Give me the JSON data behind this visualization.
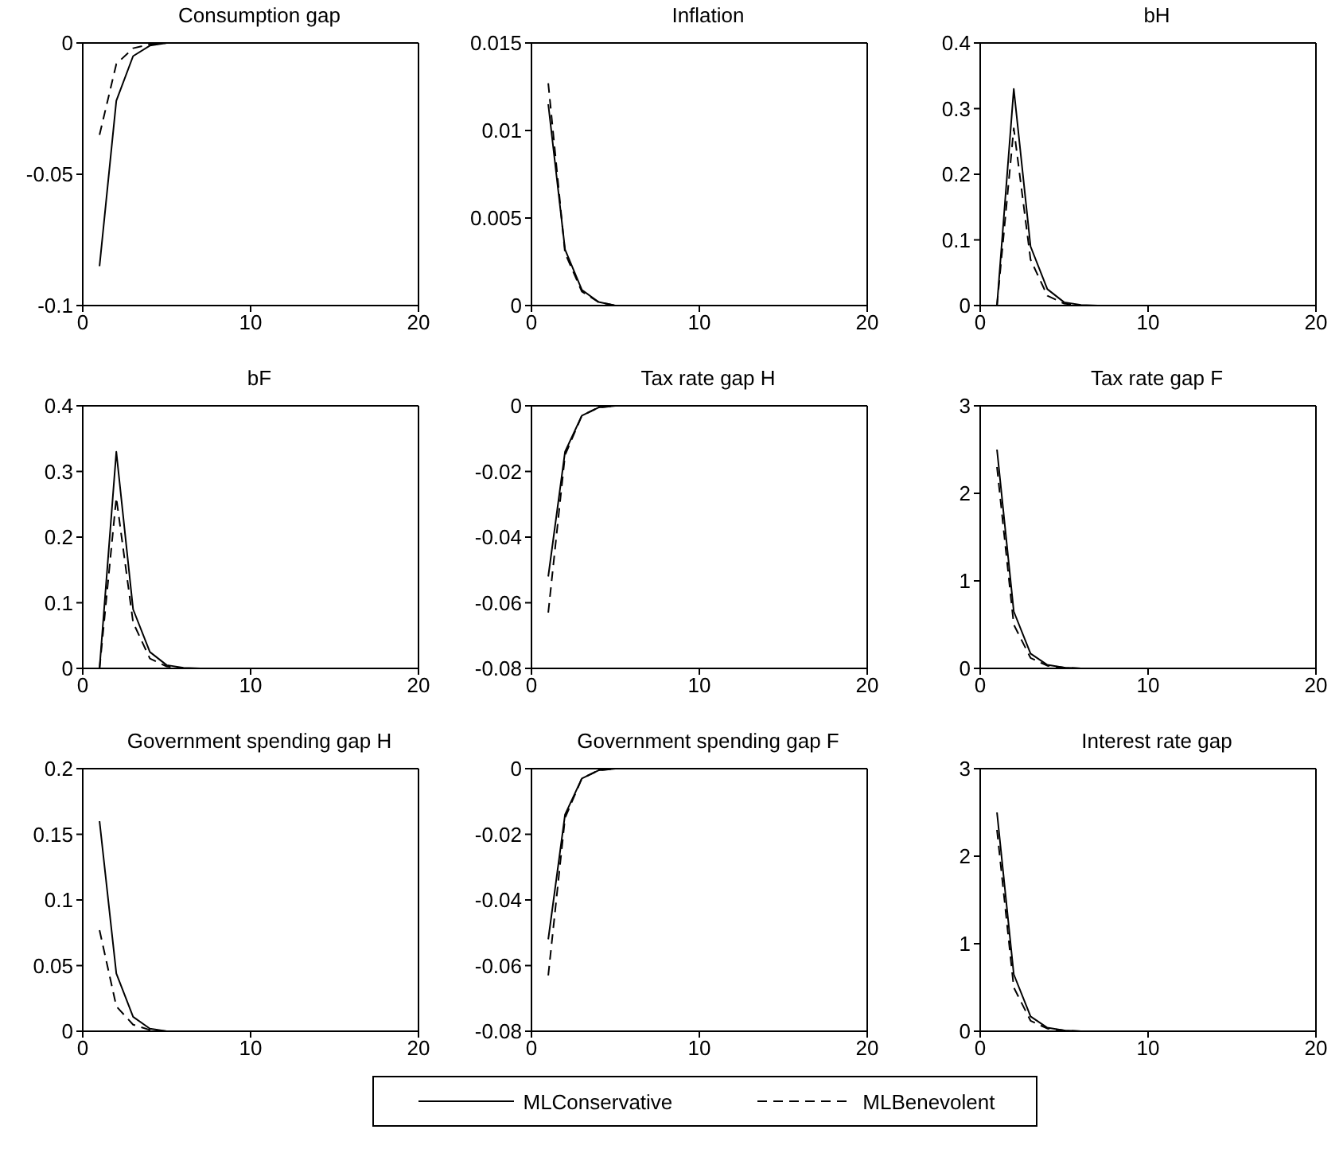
{
  "chart_data": [
    {
      "type": "line",
      "title": "Consumption gap",
      "x": [
        1,
        2,
        3,
        4,
        5,
        6,
        7,
        8,
        9,
        10,
        11,
        12,
        13,
        14,
        15,
        16,
        17,
        18,
        19,
        20
      ],
      "xlim": [
        0,
        20
      ],
      "xticks": [
        0,
        10,
        20
      ],
      "ylim": [
        -0.1,
        0
      ],
      "yticks": [
        -0.1,
        -0.05,
        0
      ],
      "series": [
        {
          "color": "#000000",
          "line_style": "solid",
          "values": [
            -0.085,
            -0.022,
            -0.005,
            -0.001,
            0,
            0,
            0,
            0,
            0,
            0,
            0,
            0,
            0,
            0,
            0,
            0,
            0,
            0,
            0,
            0
          ]
        },
        {
          "color": "#000000",
          "line_style": "dashed",
          "values": [
            -0.035,
            -0.008,
            -0.002,
            -0.0005,
            0,
            0,
            0,
            0,
            0,
            0,
            0,
            0,
            0,
            0,
            0,
            0,
            0,
            0,
            0,
            0
          ]
        }
      ]
    },
    {
      "type": "line",
      "title": "Inflation",
      "x": [
        1,
        2,
        3,
        4,
        5,
        6,
        7,
        8,
        9,
        10,
        11,
        12,
        13,
        14,
        15,
        16,
        17,
        18,
        19,
        20
      ],
      "xlim": [
        0,
        20
      ],
      "xticks": [
        0,
        10,
        20
      ],
      "ylim": [
        0,
        0.015
      ],
      "yticks": [
        0,
        0.005,
        0.01,
        0.015
      ],
      "series": [
        {
          "color": "#000000",
          "line_style": "solid",
          "values": [
            0.0115,
            0.0032,
            0.0009,
            0.0002,
            0,
            0,
            0,
            0,
            0,
            0,
            0,
            0,
            0,
            0,
            0,
            0,
            0,
            0,
            0,
            0
          ]
        },
        {
          "color": "#000000",
          "line_style": "dashed",
          "values": [
            0.0127,
            0.003,
            0.0008,
            0.0002,
            0,
            0,
            0,
            0,
            0,
            0,
            0,
            0,
            0,
            0,
            0,
            0,
            0,
            0,
            0,
            0
          ]
        }
      ]
    },
    {
      "type": "line",
      "title": "bH",
      "x": [
        1,
        2,
        3,
        4,
        5,
        6,
        7,
        8,
        9,
        10,
        11,
        12,
        13,
        14,
        15,
        16,
        17,
        18,
        19,
        20
      ],
      "xlim": [
        0,
        20
      ],
      "xticks": [
        0,
        10,
        20
      ],
      "ylim": [
        0,
        0.4
      ],
      "yticks": [
        0,
        0.1,
        0.2,
        0.3,
        0.4
      ],
      "series": [
        {
          "color": "#000000",
          "line_style": "solid",
          "values": [
            0,
            0.33,
            0.09,
            0.025,
            0.005,
            0.001,
            0,
            0,
            0,
            0,
            0,
            0,
            0,
            0,
            0,
            0,
            0,
            0,
            0,
            0
          ]
        },
        {
          "color": "#000000",
          "line_style": "dashed",
          "values": [
            0,
            0.27,
            0.07,
            0.015,
            0.003,
            0,
            0,
            0,
            0,
            0,
            0,
            0,
            0,
            0,
            0,
            0,
            0,
            0,
            0,
            0
          ]
        }
      ]
    },
    {
      "type": "line",
      "title": "bF",
      "x": [
        1,
        2,
        3,
        4,
        5,
        6,
        7,
        8,
        9,
        10,
        11,
        12,
        13,
        14,
        15,
        16,
        17,
        18,
        19,
        20
      ],
      "xlim": [
        0,
        20
      ],
      "xticks": [
        0,
        10,
        20
      ],
      "ylim": [
        0,
        0.4
      ],
      "yticks": [
        0,
        0.1,
        0.2,
        0.3,
        0.4
      ],
      "series": [
        {
          "color": "#000000",
          "line_style": "solid",
          "values": [
            0,
            0.33,
            0.09,
            0.025,
            0.005,
            0.001,
            0,
            0,
            0,
            0,
            0,
            0,
            0,
            0,
            0,
            0,
            0,
            0,
            0,
            0
          ]
        },
        {
          "color": "#000000",
          "line_style": "dashed",
          "values": [
            0,
            0.26,
            0.07,
            0.015,
            0.003,
            0,
            0,
            0,
            0,
            0,
            0,
            0,
            0,
            0,
            0,
            0,
            0,
            0,
            0,
            0
          ]
        }
      ]
    },
    {
      "type": "line",
      "title": "Tax rate gap H",
      "x": [
        1,
        2,
        3,
        4,
        5,
        6,
        7,
        8,
        9,
        10,
        11,
        12,
        13,
        14,
        15,
        16,
        17,
        18,
        19,
        20
      ],
      "xlim": [
        0,
        20
      ],
      "xticks": [
        0,
        10,
        20
      ],
      "ylim": [
        -0.08,
        0
      ],
      "yticks": [
        -0.08,
        -0.06,
        -0.04,
        -0.02,
        0
      ],
      "series": [
        {
          "color": "#000000",
          "line_style": "solid",
          "values": [
            -0.052,
            -0.014,
            -0.003,
            -0.0005,
            0,
            0,
            0,
            0,
            0,
            0,
            0,
            0,
            0,
            0,
            0,
            0,
            0,
            0,
            0,
            0
          ]
        },
        {
          "color": "#000000",
          "line_style": "dashed",
          "values": [
            -0.063,
            -0.015,
            -0.003,
            -0.0005,
            0,
            0,
            0,
            0,
            0,
            0,
            0,
            0,
            0,
            0,
            0,
            0,
            0,
            0,
            0,
            0
          ]
        }
      ]
    },
    {
      "type": "line",
      "title": "Tax rate gap F",
      "x": [
        1,
        2,
        3,
        4,
        5,
        6,
        7,
        8,
        9,
        10,
        11,
        12,
        13,
        14,
        15,
        16,
        17,
        18,
        19,
        20
      ],
      "xlim": [
        0,
        20
      ],
      "xticks": [
        0,
        10,
        20
      ],
      "ylim": [
        0,
        3
      ],
      "yticks": [
        0,
        1,
        2,
        3
      ],
      "series": [
        {
          "color": "#000000",
          "line_style": "solid",
          "values": [
            2.5,
            0.65,
            0.17,
            0.04,
            0.01,
            0,
            0,
            0,
            0,
            0,
            0,
            0,
            0,
            0,
            0,
            0,
            0,
            0,
            0,
            0
          ]
        },
        {
          "color": "#000000",
          "line_style": "dashed",
          "values": [
            2.3,
            0.5,
            0.12,
            0.03,
            0.01,
            0,
            0,
            0,
            0,
            0,
            0,
            0,
            0,
            0,
            0,
            0,
            0,
            0,
            0,
            0
          ]
        }
      ]
    },
    {
      "type": "line",
      "title": "Government spending gap H",
      "x": [
        1,
        2,
        3,
        4,
        5,
        6,
        7,
        8,
        9,
        10,
        11,
        12,
        13,
        14,
        15,
        16,
        17,
        18,
        19,
        20
      ],
      "xlim": [
        0,
        20
      ],
      "xticks": [
        0,
        10,
        20
      ],
      "ylim": [
        0,
        0.2
      ],
      "yticks": [
        0,
        0.05,
        0.1,
        0.15,
        0.2
      ],
      "series": [
        {
          "color": "#000000",
          "line_style": "solid",
          "values": [
            0.16,
            0.044,
            0.011,
            0.002,
            0,
            0,
            0,
            0,
            0,
            0,
            0,
            0,
            0,
            0,
            0,
            0,
            0,
            0,
            0,
            0
          ]
        },
        {
          "color": "#000000",
          "line_style": "dashed",
          "values": [
            0.077,
            0.019,
            0.005,
            0.001,
            0,
            0,
            0,
            0,
            0,
            0,
            0,
            0,
            0,
            0,
            0,
            0,
            0,
            0,
            0,
            0
          ]
        }
      ]
    },
    {
      "type": "line",
      "title": "Government spending gap F",
      "x": [
        1,
        2,
        3,
        4,
        5,
        6,
        7,
        8,
        9,
        10,
        11,
        12,
        13,
        14,
        15,
        16,
        17,
        18,
        19,
        20
      ],
      "xlim": [
        0,
        20
      ],
      "xticks": [
        0,
        10,
        20
      ],
      "ylim": [
        -0.08,
        0
      ],
      "yticks": [
        -0.08,
        -0.06,
        -0.04,
        -0.02,
        0
      ],
      "legend": "bottom",
      "series": [
        {
          "name": "MLConservative",
          "color": "#000000",
          "line_style": "solid",
          "values": [
            -0.052,
            -0.014,
            -0.003,
            -0.0005,
            0,
            0,
            0,
            0,
            0,
            0,
            0,
            0,
            0,
            0,
            0,
            0,
            0,
            0,
            0,
            0
          ]
        },
        {
          "name": "MLBenevolent",
          "color": "#000000",
          "line_style": "dashed",
          "values": [
            -0.063,
            -0.015,
            -0.003,
            -0.0005,
            0,
            0,
            0,
            0,
            0,
            0,
            0,
            0,
            0,
            0,
            0,
            0,
            0,
            0,
            0,
            0
          ]
        }
      ]
    },
    {
      "type": "line",
      "title": "Interest rate gap",
      "x": [
        1,
        2,
        3,
        4,
        5,
        6,
        7,
        8,
        9,
        10,
        11,
        12,
        13,
        14,
        15,
        16,
        17,
        18,
        19,
        20
      ],
      "xlim": [
        0,
        20
      ],
      "xticks": [
        0,
        10,
        20
      ],
      "ylim": [
        0,
        3
      ],
      "yticks": [
        0,
        1,
        2,
        3
      ],
      "series": [
        {
          "color": "#000000",
          "line_style": "solid",
          "values": [
            2.5,
            0.65,
            0.17,
            0.04,
            0.01,
            0,
            0,
            0,
            0,
            0,
            0,
            0,
            0,
            0,
            0,
            0,
            0,
            0,
            0,
            0
          ]
        },
        {
          "color": "#000000",
          "line_style": "dashed",
          "values": [
            2.3,
            0.5,
            0.12,
            0.03,
            0.01,
            0,
            0,
            0,
            0,
            0,
            0,
            0,
            0,
            0,
            0,
            0,
            0,
            0,
            0,
            0
          ]
        }
      ]
    }
  ]
}
